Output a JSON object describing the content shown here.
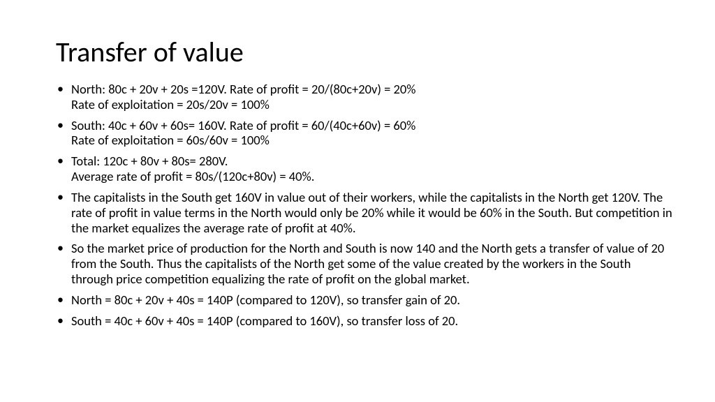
{
  "title": "Transfer of value",
  "bullets": [
    {
      "lines": [
        "North: 80c + 20v + 20s =120V.  Rate of profit = 20/(80c+20v) = 20%",
        "Rate of exploitation = 20s/20v = 100%"
      ]
    },
    {
      "lines": [
        "South: 40c + 60v + 60s= 160V.  Rate of profit = 60/(40c+60v) = 60%",
        "Rate of exploitation = 60s/60v = 100%"
      ]
    },
    {
      "lines": [
        "Total: 120c + 80v + 80s= 280V.",
        "Average rate of profit = 80s/(120c+80v) = 40%."
      ]
    },
    {
      "lines": [
        "The capitalists in the South get 160V in value out of their workers, while the capitalists in the North get 120V.  The rate of profit in value terms in the North would only be 20% while it would be 60% in the South.  But competition in the market equalizes the average rate of profit at 40%."
      ]
    },
    {
      "lines": [
        "So the market price of production for the North and South is now 140 and the North gets a transfer of value of 20 from the South.  Thus the capitalists of the North get some of the value created by the workers in the South through price competition equalizing the rate of profit on the global market."
      ]
    },
    {
      "lines": [
        "North = 80c + 20v + 40s = 140P (compared to 120V), so transfer gain of 20."
      ]
    },
    {
      "lines": [
        "South = 40c + 60v + 40s = 140P (compared to 160V), so transfer loss of 20."
      ]
    }
  ],
  "style": {
    "background_color": "#ffffff",
    "text_color": "#000000",
    "title_fontsize": 40,
    "body_fontsize": 18.5,
    "font_family": "Calibri"
  }
}
